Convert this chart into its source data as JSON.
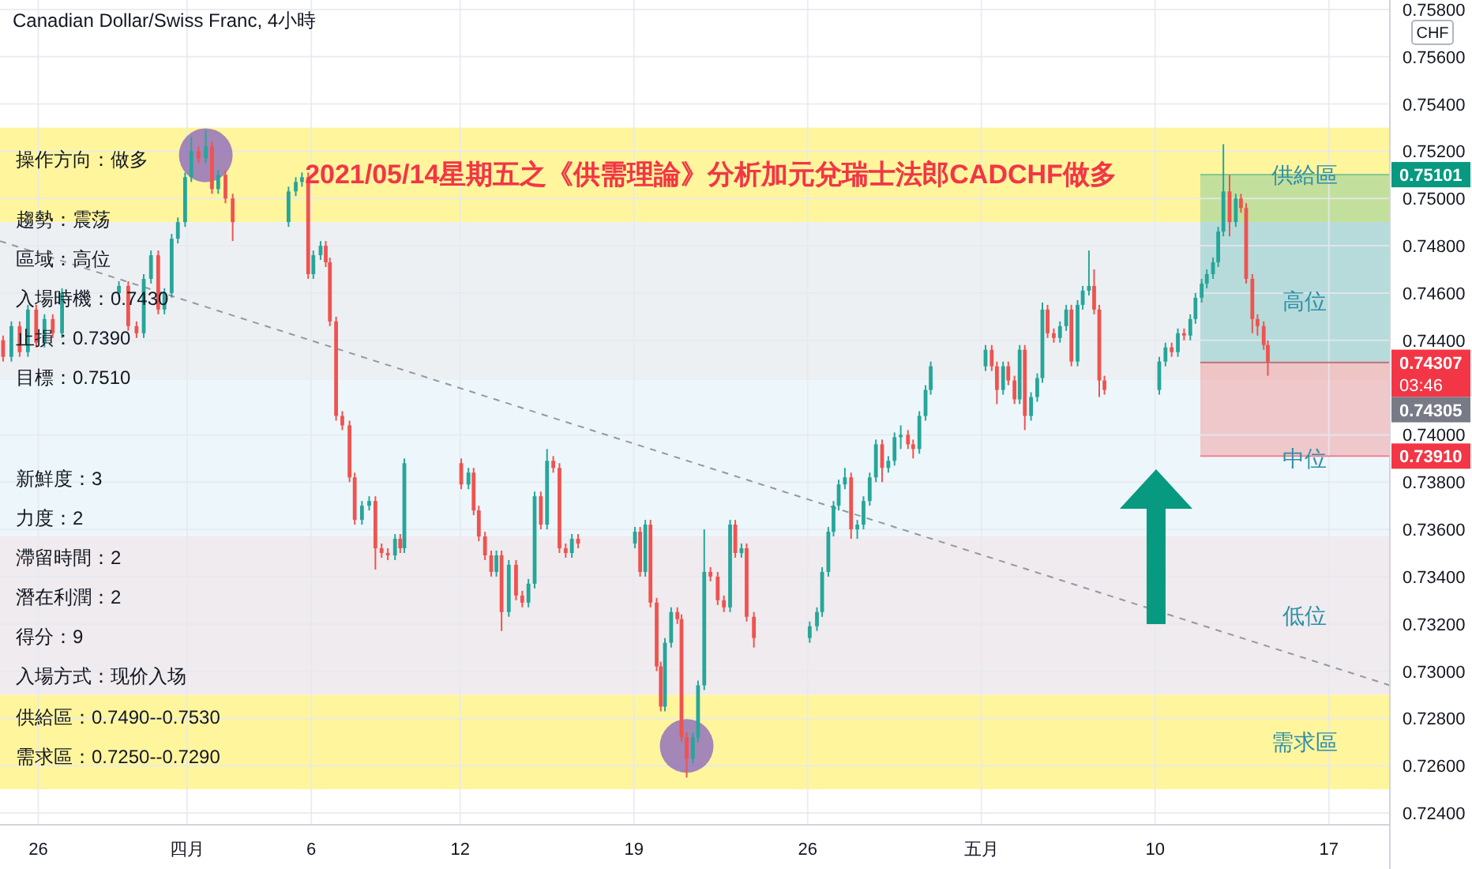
{
  "chart_data": {
    "type": "candlestick",
    "title": "Canadian Dollar/Swiss Franc, 4小時",
    "subtitle": "2021/05/14星期五之《供需理論》分析加元兌瑞士法郎CADCHF做多",
    "ylabel": "CHF",
    "xlim": [
      "2021-03-24T11:00",
      "2021-05-19T11:00"
    ],
    "ylim": [
      0.7235,
      0.7584
    ],
    "xticks": [
      {
        "value": "2021-03-26",
        "label": "26"
      },
      {
        "value": "2021-04-01",
        "label": "四月"
      },
      {
        "value": "2021-04-06",
        "label": "6"
      },
      {
        "value": "2021-04-12",
        "label": "12"
      },
      {
        "value": "2021-04-19",
        "label": "19"
      },
      {
        "value": "2021-04-26",
        "label": "26"
      },
      {
        "value": "2021-05-03",
        "label": "五月"
      },
      {
        "value": "2021-05-10",
        "label": "10"
      },
      {
        "value": "2021-05-17",
        "label": "17"
      }
    ],
    "yticks": [
      {
        "value": 0.724,
        "label": "0.72400"
      },
      {
        "value": 0.726,
        "label": "0.72600"
      },
      {
        "value": 0.728,
        "label": "0.72800"
      },
      {
        "value": 0.73,
        "label": "0.73000"
      },
      {
        "value": 0.732,
        "label": "0.73200"
      },
      {
        "value": 0.734,
        "label": "0.73400"
      },
      {
        "value": 0.736,
        "label": "0.73600"
      },
      {
        "value": 0.738,
        "label": "0.73800"
      },
      {
        "value": 0.74,
        "label": "0.74000"
      },
      {
        "value": 0.744,
        "label": "0.74400"
      },
      {
        "value": 0.746,
        "label": "0.74600"
      },
      {
        "value": 0.748,
        "label": "0.74800"
      },
      {
        "value": 0.75,
        "label": "0.75000"
      },
      {
        "value": 0.752,
        "label": "0.75200"
      },
      {
        "value": 0.754,
        "label": "0.75400"
      },
      {
        "value": 0.756,
        "label": "0.75600"
      },
      {
        "value": 0.758,
        "label": "0.75800"
      }
    ],
    "grid": true,
    "x": [
      "2021-03-24T14:00",
      "2021-03-24T22:00",
      "2021-03-25T06:00",
      "2021-03-25T14:00",
      "2021-03-25T22:00",
      "2021-03-26T06:00",
      "2021-03-26T14:00",
      "2021-03-26T23:00",
      "2021-03-29T06:00",
      "2021-03-29T15:00",
      "2021-03-29T23:00",
      "2021-03-30T06:00",
      "2021-03-30T13:00",
      "2021-03-30T20:00",
      "2021-03-31T02:00",
      "2021-03-31T09:00",
      "2021-03-31T15:00",
      "2021-03-31T22:00",
      "2021-04-01T04:00",
      "2021-04-01T11:00",
      "2021-04-01T18:00",
      "2021-04-02T00:00",
      "2021-04-02T06:00",
      "2021-04-02T13:00",
      "2021-04-02T20:00",
      "2021-04-05T02:00",
      "2021-04-05T09:00",
      "2021-04-05T15:00",
      "2021-04-05T21:00",
      "2021-04-06T02:00",
      "2021-04-06T09:00",
      "2021-04-06T14:00",
      "2021-04-06T18:00",
      "2021-04-07T00:00",
      "2021-04-07T06:00",
      "2021-04-07T13:00",
      "2021-04-07T18:00",
      "2021-04-08T01:00",
      "2021-04-08T08:00",
      "2021-04-08T14:00",
      "2021-04-08T20:00",
      "2021-04-09T02:00",
      "2021-04-09T09:00",
      "2021-04-09T14:00",
      "2021-04-09T18:00",
      "2021-04-12T01:00",
      "2021-04-12T08:00",
      "2021-04-12T13:00",
      "2021-04-12T18:00",
      "2021-04-13T00:00",
      "2021-04-13T06:00",
      "2021-04-13T11:00",
      "2021-04-13T16:00",
      "2021-04-13T23:00",
      "2021-04-14T06:00",
      "2021-04-14T12:00",
      "2021-04-14T18:00",
      "2021-04-15T00:00",
      "2021-04-15T06:00",
      "2021-04-15T12:00",
      "2021-04-15T18:00",
      "2021-04-16T00:00",
      "2021-04-16T06:00",
      "2021-04-16T12:00",
      "2021-04-16T18:00",
      "2021-04-19T01:00",
      "2021-04-19T06:00",
      "2021-04-19T11:00",
      "2021-04-19T16:00",
      "2021-04-19T22:00",
      "2021-04-20T02:00",
      "2021-04-20T06:00",
      "2021-04-20T12:00",
      "2021-04-20T18:00",
      "2021-04-20T22:00",
      "2021-04-21T03:00",
      "2021-04-21T09:00",
      "2021-04-21T14:00",
      "2021-04-21T20:00",
      "2021-04-22T02:00",
      "2021-04-22T09:00",
      "2021-04-22T15:00",
      "2021-04-22T21:00",
      "2021-04-23T02:00",
      "2021-04-23T08:00",
      "2021-04-23T13:00",
      "2021-04-23T20:00",
      "2021-04-26T02:00",
      "2021-04-26T09:00",
      "2021-04-26T14:00",
      "2021-04-26T20:00",
      "2021-04-27T01:00",
      "2021-04-27T06:00",
      "2021-04-27T12:00",
      "2021-04-27T18:00",
      "2021-04-28T00:00",
      "2021-04-28T06:00",
      "2021-04-28T12:00",
      "2021-04-28T18:00",
      "2021-04-29T00:00",
      "2021-04-29T06:00",
      "2021-04-29T12:00",
      "2021-04-29T18:00",
      "2021-04-30T01:00",
      "2021-04-30T06:00",
      "2021-04-30T12:00",
      "2021-04-30T18:00",
      "2021-04-30T23:00",
      "2021-05-03T04:00",
      "2021-05-03T10:00",
      "2021-05-03T15:00",
      "2021-05-03T21:00",
      "2021-05-04T02:00",
      "2021-05-04T08:00",
      "2021-05-04T13:00",
      "2021-05-04T18:00",
      "2021-05-05T00:00",
      "2021-05-05T06:00",
      "2021-05-05T11:00",
      "2021-05-05T16:00",
      "2021-05-05T22:00",
      "2021-05-06T04:00",
      "2021-05-06T10:00",
      "2021-05-06T15:00",
      "2021-05-06T21:00",
      "2021-05-07T02:00",
      "2021-05-07T08:00",
      "2021-05-07T13:00",
      "2021-05-07T18:00",
      "2021-05-07T23:00",
      "2021-05-10T04:00",
      "2021-05-10T10:00",
      "2021-05-10T16:00",
      "2021-05-10T22:00",
      "2021-05-11T04:00",
      "2021-05-11T10:00",
      "2021-05-11T15:00",
      "2021-05-11T21:00",
      "2021-05-12T02:00",
      "2021-05-12T08:00",
      "2021-05-12T13:00",
      "2021-05-12T18:00",
      "2021-05-13T00:00",
      "2021-05-13T06:00",
      "2021-05-13T11:00",
      "2021-05-13T16:00",
      "2021-05-13T22:00",
      "2021-05-14T03:00",
      "2021-05-14T09:00",
      "2021-05-14T13:00"
    ],
    "ohlc": [
      [
        0.744,
        0.7442,
        0.7431,
        0.7433
      ],
      [
        0.7433,
        0.7448,
        0.7431,
        0.7446
      ],
      [
        0.7446,
        0.7448,
        0.7433,
        0.7435
      ],
      [
        0.7435,
        0.7455,
        0.7433,
        0.7453
      ],
      [
        0.7453,
        0.7455,
        0.7437,
        0.7439
      ],
      [
        0.7439,
        0.7451,
        0.7437,
        0.7449
      ],
      [
        0.7449,
        0.7451,
        0.7441,
        0.7443
      ],
      [
        0.7443,
        0.7462,
        0.7441,
        0.746
      ],
      [
        0.746,
        0.7465,
        0.7458,
        0.7463
      ],
      [
        0.7463,
        0.7465,
        0.7444,
        0.7446
      ],
      [
        0.7446,
        0.7448,
        0.7441,
        0.7443
      ],
      [
        0.7443,
        0.7468,
        0.7441,
        0.7466
      ],
      [
        0.7466,
        0.7478,
        0.7464,
        0.7476
      ],
      [
        0.7476,
        0.7478,
        0.7451,
        0.7453
      ],
      [
        0.7453,
        0.7462,
        0.7451,
        0.746
      ],
      [
        0.746,
        0.7485,
        0.7458,
        0.7483
      ],
      [
        0.7483,
        0.7492,
        0.7481,
        0.749
      ],
      [
        0.749,
        0.7511,
        0.7488,
        0.7509
      ],
      [
        0.7509,
        0.7526,
        0.7507,
        0.752
      ],
      [
        0.752,
        0.7522,
        0.7515,
        0.7517
      ],
      [
        0.7517,
        0.7529,
        0.7515,
        0.7522
      ],
      [
        0.7522,
        0.7524,
        0.7502,
        0.7504
      ],
      [
        0.7504,
        0.7512,
        0.7502,
        0.751
      ],
      [
        0.751,
        0.7512,
        0.7498,
        0.75
      ],
      [
        0.75,
        0.7502,
        0.7482,
        0.749
      ],
      [
        0.749,
        0.7505,
        0.7488,
        0.7503
      ],
      [
        0.7503,
        0.7509,
        0.7501,
        0.7507
      ],
      [
        0.7507,
        0.7511,
        0.7505,
        0.7509
      ],
      [
        0.7509,
        0.7511,
        0.7466,
        0.7468
      ],
      [
        0.7468,
        0.7478,
        0.7466,
        0.7476
      ],
      [
        0.7476,
        0.7482,
        0.7474,
        0.748
      ],
      [
        0.748,
        0.7482,
        0.7471,
        0.7473
      ],
      [
        0.7473,
        0.7475,
        0.7446,
        0.7448
      ],
      [
        0.7448,
        0.745,
        0.7406,
        0.7408
      ],
      [
        0.7408,
        0.741,
        0.7402,
        0.7404
      ],
      [
        0.7404,
        0.7406,
        0.738,
        0.7382
      ],
      [
        0.7382,
        0.7384,
        0.7362,
        0.7364
      ],
      [
        0.7364,
        0.7372,
        0.7362,
        0.737
      ],
      [
        0.737,
        0.7374,
        0.7368,
        0.7372
      ],
      [
        0.7372,
        0.7374,
        0.7343,
        0.7352
      ],
      [
        0.7352,
        0.7354,
        0.7348,
        0.735
      ],
      [
        0.735,
        0.7352,
        0.7347,
        0.7349
      ],
      [
        0.7349,
        0.7358,
        0.7347,
        0.7356
      ],
      [
        0.7356,
        0.7358,
        0.735,
        0.7352
      ],
      [
        0.7352,
        0.739,
        0.735,
        0.7388
      ],
      [
        0.7388,
        0.739,
        0.7377,
        0.7379
      ],
      [
        0.7379,
        0.7386,
        0.7377,
        0.7384
      ],
      [
        0.7384,
        0.7386,
        0.7366,
        0.7368
      ],
      [
        0.7368,
        0.737,
        0.7355,
        0.7357
      ],
      [
        0.7357,
        0.7359,
        0.7347,
        0.7349
      ],
      [
        0.7349,
        0.7351,
        0.734,
        0.7342
      ],
      [
        0.7342,
        0.7351,
        0.734,
        0.7349
      ],
      [
        0.7349,
        0.7351,
        0.7317,
        0.7325
      ],
      [
        0.7325,
        0.7347,
        0.7323,
        0.7345
      ],
      [
        0.7345,
        0.7347,
        0.733,
        0.7332
      ],
      [
        0.7332,
        0.7334,
        0.7327,
        0.7329
      ],
      [
        0.7329,
        0.7339,
        0.7327,
        0.7337
      ],
      [
        0.7337,
        0.7376,
        0.7335,
        0.7374
      ],
      [
        0.7374,
        0.7376,
        0.736,
        0.7362
      ],
      [
        0.7362,
        0.7394,
        0.736,
        0.7389
      ],
      [
        0.7389,
        0.7391,
        0.7384,
        0.7386
      ],
      [
        0.7386,
        0.7388,
        0.735,
        0.7352
      ],
      [
        0.7352,
        0.7354,
        0.7348,
        0.735
      ],
      [
        0.735,
        0.7358,
        0.7348,
        0.7356
      ],
      [
        0.7356,
        0.7358,
        0.7352,
        0.7354
      ],
      [
        0.7354,
        0.7361,
        0.7352,
        0.7359
      ],
      [
        0.7359,
        0.7361,
        0.734,
        0.7342
      ],
      [
        0.7342,
        0.7364,
        0.734,
        0.7362
      ],
      [
        0.7362,
        0.7364,
        0.7327,
        0.7329
      ],
      [
        0.7329,
        0.7331,
        0.73,
        0.7302
      ],
      [
        0.7302,
        0.7304,
        0.7283,
        0.7285
      ],
      [
        0.7285,
        0.7314,
        0.7283,
        0.7312
      ],
      [
        0.7312,
        0.7327,
        0.731,
        0.7325
      ],
      [
        0.7325,
        0.7327,
        0.732,
        0.7322
      ],
      [
        0.7322,
        0.7324,
        0.727,
        0.7272
      ],
      [
        0.7272,
        0.7274,
        0.7255,
        0.7263
      ],
      [
        0.7263,
        0.7274,
        0.7261,
        0.7272
      ],
      [
        0.7272,
        0.7296,
        0.727,
        0.7294
      ],
      [
        0.7294,
        0.736,
        0.7292,
        0.7342
      ],
      [
        0.7342,
        0.7344,
        0.7338,
        0.734
      ],
      [
        0.734,
        0.7342,
        0.7328,
        0.733
      ],
      [
        0.733,
        0.7332,
        0.7325,
        0.7327
      ],
      [
        0.7327,
        0.7364,
        0.7325,
        0.7362
      ],
      [
        0.7362,
        0.7364,
        0.7348,
        0.735
      ],
      [
        0.735,
        0.7354,
        0.7348,
        0.7352
      ],
      [
        0.7352,
        0.7354,
        0.7321,
        0.7323
      ],
      [
        0.7323,
        0.7325,
        0.731,
        0.7314
      ],
      [
        0.7314,
        0.7321,
        0.7312,
        0.7319
      ],
      [
        0.7319,
        0.7327,
        0.7317,
        0.7325
      ],
      [
        0.7325,
        0.7344,
        0.7323,
        0.7342
      ],
      [
        0.7342,
        0.7361,
        0.734,
        0.7359
      ],
      [
        0.7359,
        0.7372,
        0.7357,
        0.737
      ],
      [
        0.737,
        0.7381,
        0.7368,
        0.7379
      ],
      [
        0.7379,
        0.7386,
        0.7377,
        0.7382
      ],
      [
        0.7382,
        0.7384,
        0.7356,
        0.736
      ],
      [
        0.736,
        0.7364,
        0.7356,
        0.7362
      ],
      [
        0.7362,
        0.7374,
        0.736,
        0.7372
      ],
      [
        0.7372,
        0.7384,
        0.737,
        0.7382
      ],
      [
        0.7382,
        0.7398,
        0.738,
        0.7396
      ],
      [
        0.7396,
        0.7398,
        0.738,
        0.7386
      ],
      [
        0.7386,
        0.7391,
        0.7384,
        0.7389
      ],
      [
        0.7389,
        0.7401,
        0.7387,
        0.7399
      ],
      [
        0.7399,
        0.7404,
        0.7394,
        0.74
      ],
      [
        0.74,
        0.7402,
        0.7394,
        0.7396
      ],
      [
        0.7396,
        0.7398,
        0.739,
        0.7394
      ],
      [
        0.7394,
        0.741,
        0.7392,
        0.7408
      ],
      [
        0.7408,
        0.7421,
        0.7406,
        0.7419
      ],
      [
        0.7419,
        0.7431,
        0.7417,
        0.7429
      ],
      [
        0.7429,
        0.7438,
        0.7427,
        0.7436
      ],
      [
        0.7436,
        0.7438,
        0.7427,
        0.7429
      ],
      [
        0.7429,
        0.7431,
        0.7413,
        0.7419
      ],
      [
        0.7419,
        0.7431,
        0.7417,
        0.7429
      ],
      [
        0.7429,
        0.7431,
        0.7421,
        0.7423
      ],
      [
        0.7423,
        0.7425,
        0.7413,
        0.7415
      ],
      [
        0.7415,
        0.7438,
        0.7413,
        0.7436
      ],
      [
        0.7436,
        0.7438,
        0.7402,
        0.7408
      ],
      [
        0.7408,
        0.7418,
        0.7406,
        0.7416
      ],
      [
        0.7416,
        0.7426,
        0.7414,
        0.7424
      ],
      [
        0.7424,
        0.7456,
        0.7422,
        0.7453
      ],
      [
        0.7453,
        0.7455,
        0.7441,
        0.7443
      ],
      [
        0.7443,
        0.7445,
        0.7439,
        0.7441
      ],
      [
        0.7441,
        0.7448,
        0.7439,
        0.7446
      ],
      [
        0.7446,
        0.7455,
        0.7444,
        0.7453
      ],
      [
        0.7453,
        0.7455,
        0.7429,
        0.7431
      ],
      [
        0.7431,
        0.7457,
        0.7429,
        0.7455
      ],
      [
        0.7455,
        0.7463,
        0.7453,
        0.7461
      ],
      [
        0.7461,
        0.7478,
        0.7459,
        0.7463
      ],
      [
        0.7463,
        0.747,
        0.7451,
        0.7453
      ],
      [
        0.7453,
        0.7455,
        0.7416,
        0.7423
      ],
      [
        0.7423,
        0.7425,
        0.7417,
        0.7419
      ],
      [
        0.7419,
        0.7433,
        0.7417,
        0.7431
      ],
      [
        0.7431,
        0.7439,
        0.7429,
        0.7437
      ],
      [
        0.7437,
        0.7439,
        0.7433,
        0.7435
      ],
      [
        0.7435,
        0.7445,
        0.7433,
        0.7443
      ],
      [
        0.7443,
        0.7445,
        0.744,
        0.7442
      ],
      [
        0.7442,
        0.7451,
        0.744,
        0.7449
      ],
      [
        0.7449,
        0.746,
        0.7447,
        0.7458
      ],
      [
        0.7458,
        0.7466,
        0.7456,
        0.7464
      ],
      [
        0.7464,
        0.747,
        0.7462,
        0.7468
      ],
      [
        0.7468,
        0.7475,
        0.7466,
        0.7473
      ],
      [
        0.7473,
        0.7488,
        0.7471,
        0.7486
      ],
      [
        0.7486,
        0.7523,
        0.7484,
        0.7503
      ],
      [
        0.7503,
        0.751,
        0.7484,
        0.749
      ],
      [
        0.749,
        0.7502,
        0.7488,
        0.75
      ],
      [
        0.75,
        0.7502,
        0.7494,
        0.7496
      ],
      [
        0.7496,
        0.7498,
        0.7464,
        0.7466
      ],
      [
        0.7466,
        0.7468,
        0.7443,
        0.7449
      ],
      [
        0.7449,
        0.7451,
        0.7442,
        0.7446
      ],
      [
        0.7446,
        0.7448,
        0.7436,
        0.7438
      ],
      [
        0.7438,
        0.744,
        0.7425,
        0.7431
      ]
    ],
    "series": [
      {
        "type": "line",
        "x": [
          "2021-03-24T11:00",
          "2021-05-19T11:00"
        ],
        "values": [
          0.7482,
          0.7294
        ],
        "color": "#9598a1",
        "line_style": "dashed"
      }
    ],
    "bands": [
      {
        "axis": "y",
        "from": 0.749,
        "to": 0.753,
        "label": "供給區",
        "color": "#fff59d"
      },
      {
        "axis": "y",
        "from": 0.7423,
        "to": 0.749,
        "label": "高位",
        "color": "#edf0f3"
      },
      {
        "axis": "y",
        "from": 0.7357,
        "to": 0.7423,
        "label": "中位",
        "color": "#edf6fb"
      },
      {
        "axis": "y",
        "from": 0.729,
        "to": 0.7357,
        "label": "低位",
        "color": "#efebee"
      },
      {
        "axis": "y",
        "from": 0.725,
        "to": 0.729,
        "label": "需求區",
        "color": "#fff59d"
      },
      {
        "axis": "y",
        "from": 0.7431,
        "to": 0.751,
        "label": null,
        "color": "#26a69a"
      },
      {
        "axis": "y",
        "from": 0.7391,
        "to": 0.7431,
        "label": null,
        "color": "#ef5350"
      }
    ],
    "ref_lines": [
      {
        "axis": "y",
        "value": 0.75101,
        "label": "0.75101",
        "color": "#089981"
      },
      {
        "axis": "y",
        "value": 0.74307,
        "label": "0.74307\n03:46",
        "color": "#f23645"
      },
      {
        "axis": "y",
        "value": 0.74305,
        "label": "0.74305",
        "color": "#787b86"
      },
      {
        "axis": "y",
        "value": 0.7391,
        "label": "0.73910",
        "color": "#f23645"
      }
    ],
    "annotations": [
      "操作方向：做多",
      "趨勢：震荡",
      "區域：高位",
      "入場時機：0.7430",
      "止損：0.7390",
      "目標：0.7510",
      "新鮮度：3",
      "力度：2",
      "滯留時間：2",
      "潛在利潤：2",
      "得分：9",
      "入場方式：现价入场",
      "供給區：0.7490--0.7530",
      "需求區：0.7250--0.7290"
    ]
  }
}
